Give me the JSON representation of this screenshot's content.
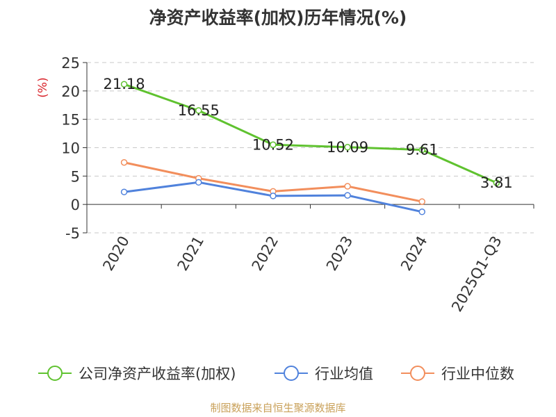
{
  "chart_data": {
    "type": "line",
    "title": "净资产收益率(加权)历年情况(%)",
    "ylabel": "(%)",
    "xlabel": "",
    "categories": [
      "2020",
      "2021",
      "2022",
      "2023",
      "2024",
      "2025Q1-Q3"
    ],
    "ylim": [
      -5,
      25
    ],
    "yticks": [
      "25",
      "20",
      "15",
      "10",
      "5",
      "0",
      "-5"
    ],
    "grid": true,
    "legend_position": "bottom",
    "series": [
      {
        "name": "公司净资产收益率(加权)",
        "color": "#5fc22f",
        "values": [
          21.18,
          16.55,
          10.52,
          10.09,
          9.61,
          3.81
        ],
        "labels": [
          "21.18",
          "16.55",
          "10.52",
          "10.09",
          "9.61",
          "3.81"
        ]
      },
      {
        "name": "行业均值",
        "color": "#5082dc",
        "values": [
          2.2,
          3.9,
          1.5,
          1.6,
          -1.3,
          null
        ]
      },
      {
        "name": "行业中位数",
        "color": "#f28e5c",
        "values": [
          7.4,
          4.6,
          2.3,
          3.2,
          0.5,
          null
        ]
      }
    ]
  },
  "footer": {
    "source": "制图数据来自恒生聚源数据库"
  }
}
